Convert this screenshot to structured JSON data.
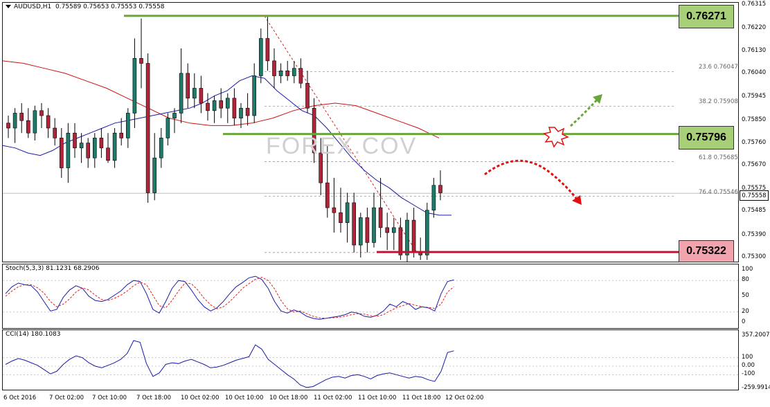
{
  "symbol_line": {
    "symbol": "AUDUSD,H1",
    "ohlc": "0.75589 0.75653 0.75553 0.75558"
  },
  "levels": {
    "resistance_high": "0.76271",
    "pivot": "0.75796",
    "support": "0.75322",
    "bid": "0.75558"
  },
  "fib_levels": [
    {
      "label": "23.6",
      "value": "0.76047"
    },
    {
      "label": "38.2",
      "value": "0.75908"
    },
    {
      "label": "61.8",
      "value": "0.75685"
    },
    {
      "label": "76.4",
      "value": "0.75546"
    }
  ],
  "price_ticks": [
    "0.76315",
    "0.76220",
    "0.76130",
    "0.76040",
    "0.75945",
    "0.75850",
    "0.75760",
    "0.75670",
    "0.75575",
    "0.75485",
    "0.75390",
    "0.75300"
  ],
  "stoch": {
    "title": "Stoch(5,3,3) 81.1231 68.2906",
    "ticks": [
      "100",
      "80",
      "50",
      "20",
      "0"
    ]
  },
  "cci": {
    "title": "CCI(14) 180.1083",
    "ticks": [
      "357.2007",
      "100",
      "0.00",
      "-100",
      "-259.9914"
    ]
  },
  "time_ticks": [
    "6 Oct 2016",
    "7 Oct 02:00",
    "7 Oct 10:00",
    "7 Oct 18:00",
    "10 Oct 02:00",
    "10 Oct 10:00",
    "10 Oct 18:00",
    "11 Oct 02:00",
    "11 Oct 10:00",
    "11 Oct 18:00",
    "12 Oct 02:00"
  ],
  "watermark": "FOREX.COV",
  "colors": {
    "bull": "#1f7a6a",
    "bear": "#b0243a",
    "ma_fast": "#1a1aa8",
    "ma_slow": "#d01010",
    "green_line": "#6aa53a",
    "red_line": "#c8102e",
    "green_box": "#a6cf78",
    "red_box": "#f1a4ad",
    "stoch_main": "#1a1aa8",
    "stoch_signal": "#e02020"
  },
  "chart_data": {
    "type": "candlestick",
    "note_scale": "price",
    "ylim": [
      0.753,
      0.76315
    ],
    "ohlc": [
      [
        0.7584,
        0.7587,
        0.7578,
        0.7582
      ],
      [
        0.7582,
        0.759,
        0.7576,
        0.7588
      ],
      [
        0.7588,
        0.7592,
        0.758,
        0.7585
      ],
      [
        0.7585,
        0.759,
        0.7578,
        0.758
      ],
      [
        0.758,
        0.7591,
        0.7577,
        0.7589
      ],
      [
        0.7589,
        0.7592,
        0.7582,
        0.7587
      ],
      [
        0.7587,
        0.759,
        0.7578,
        0.7582
      ],
      [
        0.7582,
        0.7586,
        0.7575,
        0.7578
      ],
      [
        0.7578,
        0.7582,
        0.7562,
        0.7566
      ],
      [
        0.7566,
        0.7584,
        0.756,
        0.758
      ],
      [
        0.758,
        0.7584,
        0.757,
        0.7574
      ],
      [
        0.7574,
        0.758,
        0.7568,
        0.7576
      ],
      [
        0.7576,
        0.7578,
        0.7566,
        0.757
      ],
      [
        0.757,
        0.758,
        0.7566,
        0.7578
      ],
      [
        0.7578,
        0.7582,
        0.757,
        0.7574
      ],
      [
        0.7574,
        0.758,
        0.7568,
        0.7569
      ],
      [
        0.7569,
        0.7582,
        0.7566,
        0.758
      ],
      [
        0.758,
        0.7586,
        0.7575,
        0.7578
      ],
      [
        0.7578,
        0.759,
        0.7574,
        0.7588
      ],
      [
        0.7588,
        0.7618,
        0.7582,
        0.761
      ],
      [
        0.761,
        0.7626,
        0.7598,
        0.7608
      ],
      [
        0.7608,
        0.7612,
        0.7552,
        0.7556
      ],
      [
        0.7556,
        0.758,
        0.7553,
        0.757
      ],
      [
        0.757,
        0.7582,
        0.7566,
        0.7578
      ],
      [
        0.7578,
        0.7588,
        0.7575,
        0.7586
      ],
      [
        0.7586,
        0.759,
        0.758,
        0.7588
      ],
      [
        0.7588,
        0.7614,
        0.7584,
        0.7604
      ],
      [
        0.7604,
        0.7608,
        0.759,
        0.7594
      ],
      [
        0.7594,
        0.7604,
        0.759,
        0.7598
      ],
      [
        0.7598,
        0.7603,
        0.7588,
        0.7592
      ],
      [
        0.7592,
        0.7596,
        0.7585,
        0.7589
      ],
      [
        0.7589,
        0.7595,
        0.7584,
        0.7593
      ],
      [
        0.7593,
        0.7598,
        0.7586,
        0.759
      ],
      [
        0.759,
        0.7596,
        0.7584,
        0.7594
      ],
      [
        0.7594,
        0.7598,
        0.7583,
        0.7586
      ],
      [
        0.7586,
        0.7592,
        0.7582,
        0.759
      ],
      [
        0.759,
        0.7596,
        0.7583,
        0.7587
      ],
      [
        0.7587,
        0.7608,
        0.7584,
        0.7603
      ],
      [
        0.7603,
        0.7622,
        0.76,
        0.7618
      ],
      [
        0.7618,
        0.7627,
        0.7605,
        0.7609
      ],
      [
        0.7609,
        0.7614,
        0.7598,
        0.7603
      ],
      [
        0.7603,
        0.7608,
        0.76,
        0.7605
      ],
      [
        0.7605,
        0.7609,
        0.7601,
        0.7603
      ],
      [
        0.7603,
        0.7609,
        0.76,
        0.7606
      ],
      [
        0.7606,
        0.761,
        0.7598,
        0.76
      ],
      [
        0.76,
        0.7605,
        0.7588,
        0.759
      ],
      [
        0.759,
        0.7594,
        0.7568,
        0.7572
      ],
      [
        0.7572,
        0.7578,
        0.7555,
        0.756
      ],
      [
        0.756,
        0.7575,
        0.7546,
        0.755
      ],
      [
        0.755,
        0.7562,
        0.754,
        0.7548
      ],
      [
        0.7548,
        0.7558,
        0.754,
        0.7544
      ],
      [
        0.7544,
        0.7556,
        0.7536,
        0.7552
      ],
      [
        0.7552,
        0.7556,
        0.7532,
        0.7535
      ],
      [
        0.7535,
        0.7548,
        0.753,
        0.7546
      ],
      [
        0.7546,
        0.755,
        0.7532,
        0.7536
      ],
      [
        0.7536,
        0.7556,
        0.7534,
        0.755
      ],
      [
        0.755,
        0.7562,
        0.7538,
        0.7542
      ],
      [
        0.7542,
        0.7548,
        0.7533,
        0.754
      ],
      [
        0.754,
        0.7546,
        0.7533,
        0.7542
      ],
      [
        0.7542,
        0.7546,
        0.7529,
        0.7531
      ],
      [
        0.7531,
        0.7548,
        0.7528,
        0.7545
      ],
      [
        0.7545,
        0.755,
        0.753,
        0.7532
      ],
      [
        0.7532,
        0.7538,
        0.7529,
        0.7531
      ],
      [
        0.7531,
        0.7552,
        0.7529,
        0.7549
      ],
      [
        0.7549,
        0.7562,
        0.7546,
        0.7559
      ],
      [
        0.7559,
        0.7565,
        0.7553,
        0.7556
      ]
    ],
    "ma_fast": [
      0.7575,
      0.7574,
      0.7572,
      0.7571,
      0.7573,
      0.7576,
      0.7578,
      0.758,
      0.7582,
      0.7584,
      0.7585,
      0.7586,
      0.7587,
      0.7588,
      0.7589,
      0.759,
      0.7592,
      0.7595,
      0.7597,
      0.7601,
      0.7603,
      0.7602,
      0.7597,
      0.7593,
      0.7589,
      0.7587,
      0.7582,
      0.7576,
      0.757,
      0.7565,
      0.7561,
      0.7558,
      0.7554,
      0.7551,
      0.7548,
      0.7547,
      0.7547
    ],
    "ma_slow": [
      0.7609,
      0.7608,
      0.7606,
      0.7604,
      0.7601,
      0.7598,
      0.7594,
      0.759,
      0.7586,
      0.7584,
      0.7583,
      0.7583,
      0.7584,
      0.7586,
      0.7589,
      0.7591,
      0.7592,
      0.7591,
      0.7588,
      0.7585,
      0.7582,
      0.7578
    ],
    "stoch_main": [
      55,
      68,
      75,
      72,
      70,
      58,
      40,
      22,
      25,
      48,
      62,
      70,
      65,
      50,
      42,
      40,
      44,
      52,
      60,
      72,
      80,
      78,
      55,
      25,
      18,
      40,
      65,
      80,
      78,
      62,
      44,
      30,
      22,
      28,
      40,
      55,
      68,
      76,
      85,
      88,
      82,
      65,
      40,
      22,
      18,
      24,
      20,
      12,
      8,
      6,
      8,
      10,
      12,
      15,
      20,
      18,
      12,
      10,
      14,
      22,
      35,
      30,
      40,
      35,
      25,
      30,
      28,
      22,
      55,
      78,
      81
    ],
    "stoch_signal": [
      50,
      60,
      68,
      72,
      72,
      66,
      56,
      40,
      30,
      35,
      45,
      58,
      66,
      62,
      52,
      44,
      42,
      46,
      52,
      60,
      70,
      77,
      72,
      52,
      32,
      28,
      42,
      60,
      75,
      74,
      62,
      46,
      34,
      26,
      30,
      40,
      52,
      65,
      74,
      82,
      86,
      80,
      64,
      42,
      26,
      20,
      22,
      17,
      12,
      9,
      8,
      9,
      10,
      12,
      15,
      17,
      16,
      13,
      12,
      15,
      22,
      28,
      32,
      36,
      33,
      30,
      29,
      27,
      35,
      58,
      68
    ],
    "cci": [
      20,
      60,
      90,
      70,
      40,
      10,
      -40,
      -90,
      -60,
      20,
      80,
      120,
      100,
      40,
      0,
      -20,
      10,
      40,
      80,
      150,
      300,
      280,
      30,
      -120,
      -80,
      20,
      40,
      30,
      60,
      80,
      50,
      20,
      -20,
      -10,
      10,
      40,
      70,
      90,
      110,
      250,
      200,
      80,
      20,
      -40,
      -100,
      -150,
      -220,
      -250,
      -240,
      -200,
      -160,
      -130,
      -120,
      -140,
      -110,
      -100,
      -120,
      -150,
      -110,
      -90,
      -80,
      -100,
      -120,
      -140,
      -120,
      -130,
      -160,
      -180,
      -60,
      160,
      180
    ]
  }
}
